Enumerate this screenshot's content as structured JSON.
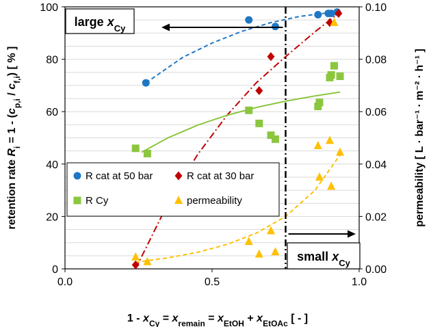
{
  "chart_data": {
    "type": "scatter",
    "xlabel": "1 - x_Cy = x_remain = x_EtOH + x_EtOAc  [ - ]",
    "ylabel": "retention rate R_i = 1 - (c_p,i / c_f,i)  [ % ]",
    "y2label": "permeability  [ L · bar⁻¹ · m⁻² · h⁻¹ ]",
    "xlabel_parts": {
      "a": "1 - ",
      "b": "x",
      "b_sub": "Cy",
      "c": " = ",
      "d": "x",
      "d_sub": "remain",
      "e": " = ",
      "f": "x",
      "f_sub": "EtOH",
      "g": " + ",
      "h": "x",
      "h_sub": "EtOAc",
      "i": "   [ - ]"
    },
    "ylabel_parts": {
      "a": "retention rate ",
      "b": "R",
      "b_sub": "i",
      "c": " = 1 - (",
      "d": "c",
      "d_sub": "p,i",
      "e": " / ",
      "f": "c",
      "f_sub": "f,i",
      "g": ")   [ % ]"
    },
    "y2label_text": "permeability   [ L · bar⁻¹ · m⁻² · h⁻¹ ]",
    "xlim": [
      0,
      1.0
    ],
    "ylim": [
      0,
      100
    ],
    "y2lim": [
      0,
      0.1
    ],
    "x_ticks": [
      "0.0",
      "0.5",
      "1.0"
    ],
    "y_ticks": [
      "0",
      "20",
      "40",
      "60",
      "80",
      "100"
    ],
    "y2_ticks": [
      "0.00",
      "0.02",
      "0.04",
      "0.06",
      "0.08",
      "0.10"
    ],
    "grid": true,
    "legend_position": "center-left",
    "series": [
      {
        "name": "R cat at 50 bar",
        "axis": "left",
        "marker": "circle",
        "color": "#1f77c4",
        "x": [
          0.275,
          0.625,
          0.715,
          0.86,
          0.895,
          0.905,
          0.925
        ],
        "y": [
          71,
          95,
          92.5,
          97,
          97.5,
          97.5,
          98
        ]
      },
      {
        "name": "R cat at 30 bar",
        "axis": "left",
        "marker": "diamond",
        "color": "#c00000",
        "x": [
          0.24,
          0.66,
          0.7,
          0.9,
          0.93
        ],
        "y": [
          1.5,
          68,
          81,
          94,
          97.5
        ]
      },
      {
        "name": "R Cy",
        "axis": "left",
        "marker": "square",
        "color": "#8cc63f",
        "x": [
          0.24,
          0.28,
          0.625,
          0.66,
          0.7,
          0.715,
          0.86,
          0.865,
          0.9,
          0.905,
          0.915,
          0.935
        ],
        "y": [
          46,
          44,
          60.5,
          55.5,
          51,
          49.5,
          62,
          63.5,
          73,
          74,
          77.5,
          73.5
        ]
      },
      {
        "name": "permeability",
        "axis": "right",
        "marker": "triangle",
        "color": "#ffc000",
        "x": [
          0.24,
          0.28,
          0.625,
          0.66,
          0.7,
          0.715,
          0.86,
          0.865,
          0.9,
          0.905,
          0.915,
          0.935
        ],
        "y": [
          0.0045,
          0.0027,
          0.0104,
          0.0056,
          0.0145,
          0.0065,
          0.047,
          0.035,
          0.049,
          0.0315,
          0.094,
          0.0445
        ]
      }
    ],
    "trendlines": [
      {
        "series": "R cat at 50 bar",
        "style": "dashed",
        "color": "#1f77c4",
        "axis": "left",
        "x": [
          0.275,
          0.4,
          0.5,
          0.6,
          0.7,
          0.8,
          0.9,
          0.935
        ],
        "y": [
          71,
          80.7,
          86.2,
          90.6,
          94,
          96.4,
          97.8,
          98.1
        ]
      },
      {
        "series": "R cat at 30 bar",
        "style": "dash-dot",
        "color": "#c00000",
        "axis": "left",
        "x": [
          0.24,
          0.35,
          0.45,
          0.55,
          0.65,
          0.75,
          0.85,
          0.935
        ],
        "y": [
          0,
          25,
          43.5,
          58.5,
          71,
          81,
          90.5,
          98
        ]
      },
      {
        "series": "R Cy",
        "style": "solid",
        "color": "#8cc63f",
        "axis": "left",
        "x": [
          0.26,
          0.35,
          0.45,
          0.55,
          0.65,
          0.75,
          0.85,
          0.935
        ],
        "y": [
          44.5,
          50,
          54.8,
          58.6,
          61.6,
          64,
          66,
          67.5
        ]
      },
      {
        "series": "permeability",
        "style": "dashed",
        "color": "#ffc000",
        "axis": "right",
        "x": [
          0.24,
          0.35,
          0.45,
          0.55,
          0.65,
          0.75,
          0.85,
          0.935
        ],
        "y": [
          0.0025,
          0.0042,
          0.0063,
          0.0093,
          0.0136,
          0.02,
          0.03,
          0.0435
        ]
      }
    ],
    "vline_x": 0.75,
    "annotations": {
      "large": {
        "text": "large ",
        "var": "x",
        "sub": "Cy",
        "arrow": "left"
      },
      "small": {
        "text": "small ",
        "var": "x",
        "sub": "Cy",
        "arrow": "right"
      }
    }
  }
}
